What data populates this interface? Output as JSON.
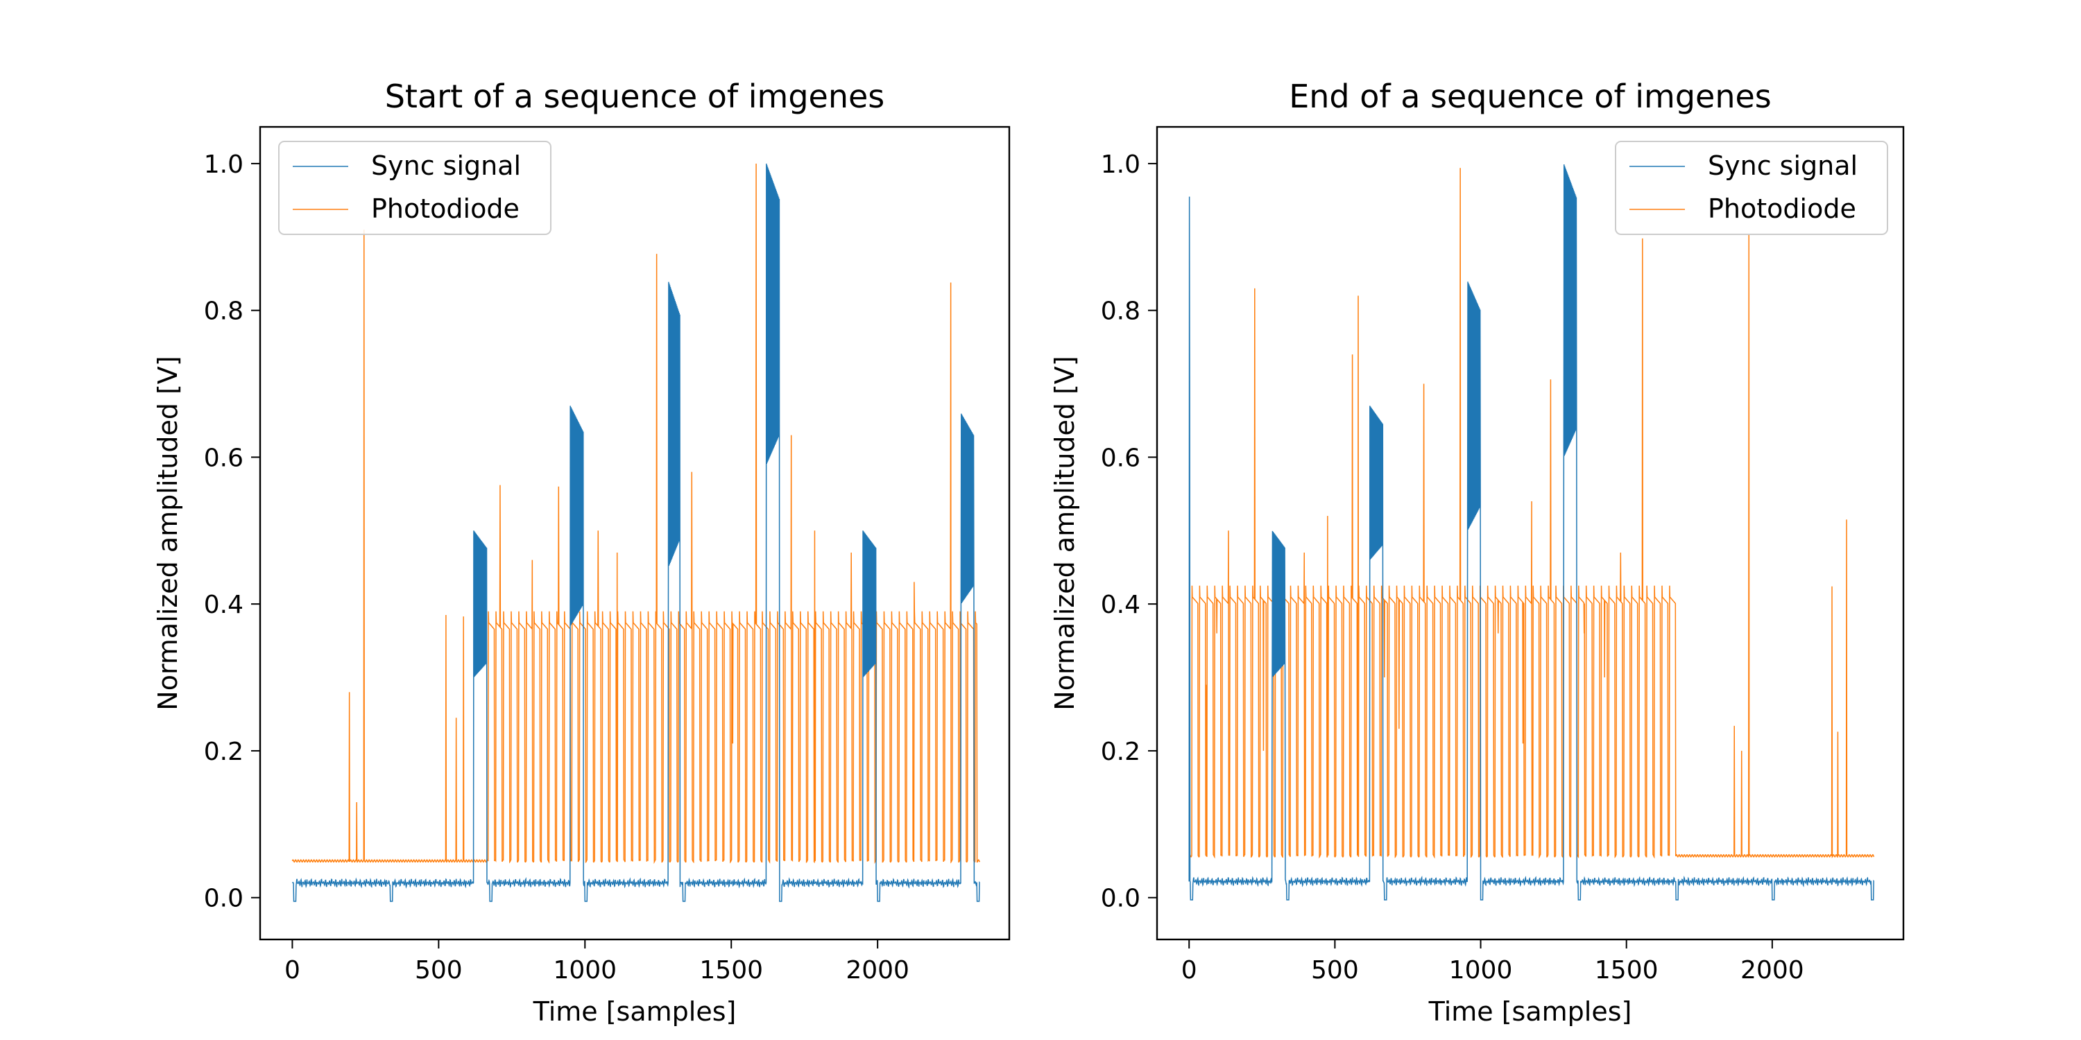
{
  "colors": {
    "sync": "#1f77b4",
    "photodiode": "#ff7f0e",
    "axes": "#000000",
    "legend_border": "#cccccc"
  },
  "chart_data": [
    {
      "type": "line",
      "title": "Start of a sequence of imgenes",
      "xlabel": "Time [samples]",
      "ylabel": "Normalized amplituded [V]",
      "xlim": [
        -110,
        2450
      ],
      "ylim": [
        -0.057,
        1.05
      ],
      "xticks": [
        0,
        500,
        1000,
        1500,
        2000
      ],
      "xtick_labels": [
        "0",
        "500",
        "1000",
        "1500",
        "2000"
      ],
      "yticks": [
        0.0,
        0.2,
        0.4,
        0.6,
        0.8,
        1.0
      ],
      "ytick_labels": [
        "0.0",
        "0.2",
        "0.4",
        "0.6",
        "0.8",
        "1.0"
      ],
      "grid": false,
      "legend": {
        "position": "top-left",
        "entries": [
          "Sync signal",
          "Photodiode"
        ]
      },
      "series": [
        {
          "name": "Sync signal",
          "n_samples": 2350,
          "baseline": 0.02,
          "ripple": 0.006,
          "dips": [
            5,
            335,
            675,
            1000,
            1335,
            1665,
            2000,
            2340
          ],
          "dip_level": -0.005,
          "bursts": [
            {
              "start": 620,
              "end": 665,
              "low": 0.3,
              "high": 0.5
            },
            {
              "start": 950,
              "end": 995,
              "low": 0.37,
              "high": 0.67
            },
            {
              "start": 1285,
              "end": 1325,
              "low": 0.45,
              "high": 0.84
            },
            {
              "start": 1620,
              "end": 1665,
              "low": 0.59,
              "high": 1.0
            },
            {
              "start": 1950,
              "end": 1995,
              "low": 0.3,
              "high": 0.5
            },
            {
              "start": 2285,
              "end": 2330,
              "low": 0.4,
              "high": 0.66
            }
          ]
        },
        {
          "name": "Photodiode",
          "n_samples": 2350,
          "baseline": 0.05,
          "plateau_start": 670,
          "plateau_end": 2340,
          "plateau_level": 0.375,
          "plateau_period": 26,
          "spikes": [
            {
              "x": 195,
              "y": 0.28
            },
            {
              "x": 220,
              "y": 0.13
            },
            {
              "x": 245,
              "y": 0.91
            },
            {
              "x": 525,
              "y": 0.385
            },
            {
              "x": 560,
              "y": 0.245
            },
            {
              "x": 585,
              "y": 0.383
            },
            {
              "x": 710,
              "y": 0.562
            },
            {
              "x": 820,
              "y": 0.46
            },
            {
              "x": 910,
              "y": 0.56
            },
            {
              "x": 1045,
              "y": 0.5
            },
            {
              "x": 1110,
              "y": 0.47
            },
            {
              "x": 1245,
              "y": 0.877
            },
            {
              "x": 1365,
              "y": 0.58
            },
            {
              "x": 1505,
              "y": 0.21
            },
            {
              "x": 1585,
              "y": 1.0
            },
            {
              "x": 1705,
              "y": 0.63
            },
            {
              "x": 1785,
              "y": 0.5
            },
            {
              "x": 1910,
              "y": 0.47
            },
            {
              "x": 2125,
              "y": 0.43
            },
            {
              "x": 2250,
              "y": 0.838
            }
          ]
        }
      ]
    },
    {
      "type": "line",
      "title": "End of a sequence of imgenes",
      "xlabel": "Time [samples]",
      "ylabel": "Normalized amplituded [V]",
      "xlim": [
        -110,
        2450
      ],
      "ylim": [
        -0.057,
        1.05
      ],
      "xticks": [
        0,
        500,
        1000,
        1500,
        2000
      ],
      "xtick_labels": [
        "0",
        "500",
        "1000",
        "1500",
        "2000"
      ],
      "yticks": [
        0.0,
        0.2,
        0.4,
        0.6,
        0.8,
        1.0
      ],
      "ytick_labels": [
        "0.0",
        "0.2",
        "0.4",
        "0.6",
        "0.8",
        "1.0"
      ],
      "grid": false,
      "legend": {
        "position": "top-right",
        "entries": [
          "Sync signal",
          "Photodiode"
        ]
      },
      "series": [
        {
          "name": "Sync signal",
          "n_samples": 2350,
          "baseline": 0.022,
          "ripple": 0.006,
          "dips": [
            5,
            335,
            670,
            1000,
            1335,
            1670,
            2000,
            2340
          ],
          "dip_level": -0.003,
          "start_spike": 0.955,
          "bursts": [
            {
              "start": 285,
              "end": 330,
              "low": 0.3,
              "high": 0.5
            },
            {
              "start": 620,
              "end": 665,
              "low": 0.46,
              "high": 0.67
            },
            {
              "start": 955,
              "end": 1000,
              "low": 0.5,
              "high": 0.84
            },
            {
              "start": 1285,
              "end": 1330,
              "low": 0.6,
              "high": 1.0
            }
          ]
        },
        {
          "name": "Photodiode",
          "n_samples": 2350,
          "baseline": 0.057,
          "plateau_start": 10,
          "plateau_end": 1670,
          "plateau_level": 0.41,
          "plateau_period": 26,
          "spikes": [
            {
              "x": 60,
              "y": 0.29
            },
            {
              "x": 95,
              "y": 0.36
            },
            {
              "x": 135,
              "y": 0.5
            },
            {
              "x": 225,
              "y": 0.83
            },
            {
              "x": 255,
              "y": 0.2
            },
            {
              "x": 395,
              "y": 0.47
            },
            {
              "x": 475,
              "y": 0.52
            },
            {
              "x": 560,
              "y": 0.74
            },
            {
              "x": 580,
              "y": 0.82
            },
            {
              "x": 670,
              "y": 0.3
            },
            {
              "x": 720,
              "y": 0.23
            },
            {
              "x": 805,
              "y": 0.7
            },
            {
              "x": 930,
              "y": 0.994
            },
            {
              "x": 1060,
              "y": 0.36
            },
            {
              "x": 1145,
              "y": 0.21
            },
            {
              "x": 1175,
              "y": 0.54
            },
            {
              "x": 1240,
              "y": 0.706
            },
            {
              "x": 1355,
              "y": 0.36
            },
            {
              "x": 1425,
              "y": 0.3
            },
            {
              "x": 1480,
              "y": 0.47
            },
            {
              "x": 1555,
              "y": 0.898
            },
            {
              "x": 1870,
              "y": 0.234
            },
            {
              "x": 1895,
              "y": 0.2
            },
            {
              "x": 1920,
              "y": 0.904
            },
            {
              "x": 2205,
              "y": 0.424
            },
            {
              "x": 2225,
              "y": 0.226
            },
            {
              "x": 2255,
              "y": 0.515
            }
          ]
        }
      ]
    }
  ]
}
